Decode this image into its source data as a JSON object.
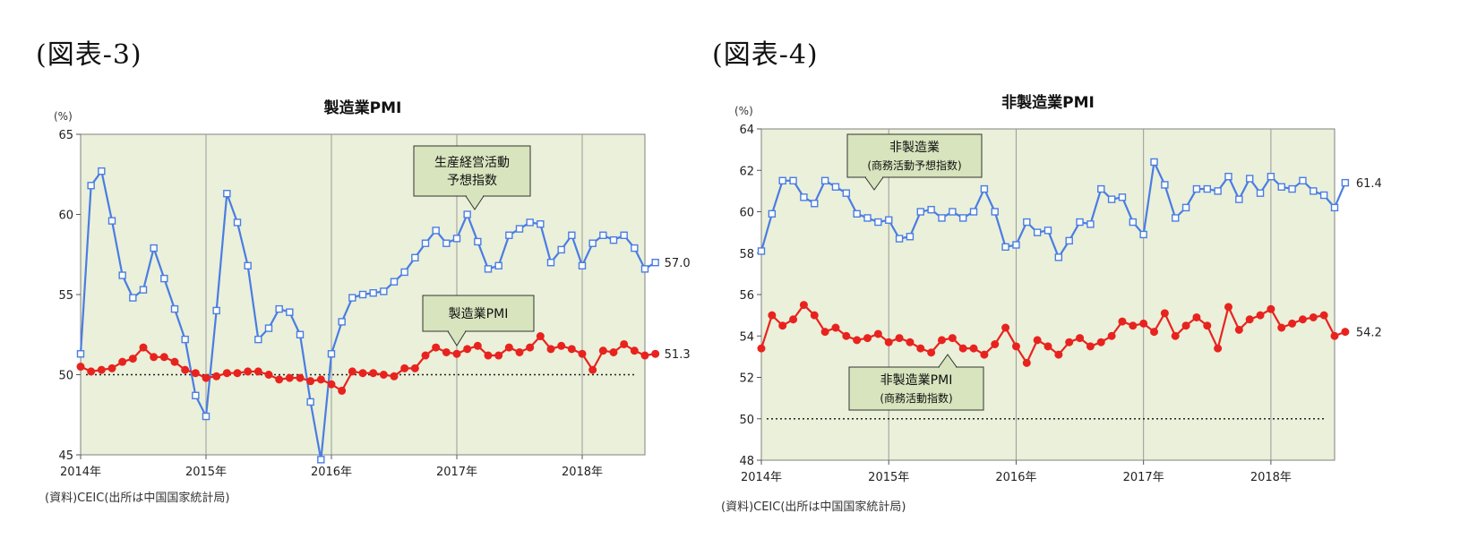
{
  "panels": [
    {
      "label": "(図表-3)",
      "source": "(資料)CEIC(出所は中国国家統計局)"
    },
    {
      "label": "(図表-4)",
      "source": "(資料)CEIC(出所は中国国家統計局)"
    }
  ],
  "chart_data": [
    {
      "type": "line",
      "title": "製造業PMI",
      "unit": "(%)",
      "ylim": [
        45,
        65
      ],
      "yticks": [
        "45",
        "50",
        "55",
        "60",
        "65"
      ],
      "x_start": "2014-01",
      "x_end": "2018-07",
      "xtick_labels": [
        "2014年",
        "2015年",
        "2016年",
        "2017年",
        "2018年"
      ],
      "grid": "vertical-yearly",
      "reference_line": 50,
      "series": [
        {
          "key": "expectation",
          "color": "#4a7de3",
          "marker": "square",
          "end_label": "57.0",
          "callout": [
            "生産経営活動",
            "予想指数"
          ],
          "values": [
            51.3,
            61.8,
            62.7,
            59.6,
            56.2,
            54.8,
            55.3,
            57.9,
            56.0,
            54.1,
            52.2,
            48.7,
            47.4,
            54.0,
            61.3,
            59.5,
            56.8,
            52.2,
            52.9,
            54.1,
            53.9,
            52.5,
            48.3,
            44.7,
            51.3,
            53.3,
            54.8,
            55.0,
            55.1,
            55.2,
            55.8,
            56.4,
            57.3,
            58.2,
            59.0,
            58.2,
            58.5,
            60.0,
            58.3,
            56.6,
            56.8,
            58.7,
            59.1,
            59.5,
            59.4,
            57.0,
            57.8,
            58.7,
            56.8,
            58.2,
            58.7,
            58.4,
            58.7,
            57.9,
            56.6,
            57.0
          ]
        },
        {
          "key": "pmi",
          "color": "#e8231f",
          "marker": "circle",
          "end_label": "51.3",
          "callout": [
            "製造業PMI"
          ],
          "values": [
            50.5,
            50.2,
            50.3,
            50.4,
            50.8,
            51.0,
            51.7,
            51.1,
            51.1,
            50.8,
            50.3,
            50.1,
            49.8,
            49.9,
            50.1,
            50.1,
            50.2,
            50.2,
            50.0,
            49.7,
            49.8,
            49.8,
            49.6,
            49.7,
            49.4,
            49.0,
            50.2,
            50.1,
            50.1,
            50.0,
            49.9,
            50.4,
            50.4,
            51.2,
            51.7,
            51.4,
            51.3,
            51.6,
            51.8,
            51.2,
            51.2,
            51.7,
            51.4,
            51.7,
            52.4,
            51.6,
            51.8,
            51.6,
            51.3,
            50.3,
            51.5,
            51.4,
            51.9,
            51.5,
            51.2,
            51.3
          ]
        }
      ],
      "source": "(資料)CEIC(出所は中国国家統計局)"
    },
    {
      "type": "line",
      "title": "非製造業PMI",
      "unit": "(%)",
      "ylim": [
        48,
        64
      ],
      "yticks": [
        "48",
        "50",
        "52",
        "54",
        "56",
        "58",
        "60",
        "62",
        "64"
      ],
      "x_start": "2014-01",
      "x_end": "2018-07",
      "xtick_labels": [
        "2014年",
        "2015年",
        "2016年",
        "2017年",
        "2018年"
      ],
      "grid": "vertical-yearly",
      "reference_line": 50,
      "series": [
        {
          "key": "expectation",
          "color": "#4a7de3",
          "marker": "square",
          "end_label": "61.4",
          "callout": [
            "非製造業",
            "(商務活動予想指数)"
          ],
          "values": [
            58.1,
            59.9,
            61.5,
            61.5,
            60.7,
            60.4,
            61.5,
            61.2,
            60.9,
            59.9,
            59.7,
            59.5,
            59.6,
            58.7,
            58.8,
            60.0,
            60.1,
            59.7,
            60.0,
            59.7,
            60.0,
            61.1,
            60.0,
            58.3,
            58.4,
            59.5,
            59.0,
            59.1,
            57.8,
            58.6,
            59.5,
            59.4,
            61.1,
            60.6,
            60.7,
            59.5,
            58.9,
            62.4,
            61.3,
            59.7,
            60.2,
            61.1,
            61.1,
            61.0,
            61.7,
            60.6,
            61.6,
            60.9,
            61.7,
            61.2,
            61.1,
            61.5,
            61.0,
            60.8,
            60.2,
            61.4
          ]
        },
        {
          "key": "pmi",
          "color": "#e8231f",
          "marker": "circle",
          "end_label": "54.2",
          "callout": [
            "非製造業PMI",
            "(商務活動指数)"
          ],
          "values": [
            53.4,
            55.0,
            54.5,
            54.8,
            55.5,
            55.0,
            54.2,
            54.4,
            54.0,
            53.8,
            53.9,
            54.1,
            53.7,
            53.9,
            53.7,
            53.4,
            53.2,
            53.8,
            53.9,
            53.4,
            53.4,
            53.1,
            53.6,
            54.4,
            53.5,
            52.7,
            53.8,
            53.5,
            53.1,
            53.7,
            53.9,
            53.5,
            53.7,
            54.0,
            54.7,
            54.5,
            54.6,
            54.2,
            55.1,
            54.0,
            54.5,
            54.9,
            54.5,
            53.4,
            55.4,
            54.3,
            54.8,
            55.0,
            55.3,
            54.4,
            54.6,
            54.8,
            54.9,
            55.0,
            54.0,
            54.2
          ]
        }
      ],
      "source": "(資料)CEIC(出所は中国国家統計局)"
    }
  ]
}
